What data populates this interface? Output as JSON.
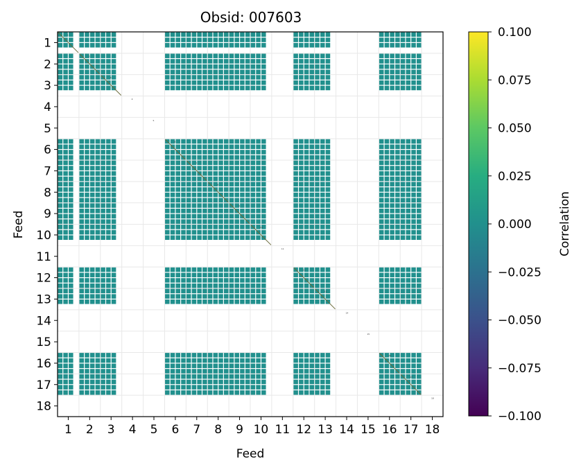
{
  "chart_data": {
    "type": "heatmap",
    "title": "Obsid: 007603",
    "xlabel": "Feed",
    "ylabel": "Feed",
    "feeds": [
      1,
      2,
      3,
      4,
      5,
      6,
      7,
      8,
      9,
      10,
      11,
      12,
      13,
      14,
      15,
      16,
      17,
      18
    ],
    "active_feeds": [
      1,
      2,
      3,
      6,
      7,
      8,
      9,
      10,
      12,
      13,
      16,
      17
    ],
    "inactive_feeds": [
      4,
      5,
      11,
      14,
      15,
      18
    ],
    "subsets_per_feed": 4,
    "active_subsets": {
      "1": [
        0,
        1,
        2
      ],
      "2": [
        0,
        1,
        2,
        3
      ],
      "3": [
        0,
        1,
        2
      ],
      "6": [
        0,
        1,
        2,
        3
      ],
      "7": [
        0,
        1,
        2,
        3
      ],
      "8": [
        0,
        1,
        2,
        3
      ],
      "9": [
        0,
        1,
        2,
        3
      ],
      "10": [
        0,
        1,
        2
      ],
      "12": [
        0,
        1,
        2,
        3
      ],
      "13": [
        0,
        1,
        2
      ],
      "16": [
        0,
        1,
        2,
        3
      ],
      "17": [
        0,
        1,
        2,
        3
      ]
    },
    "cell_value": 0.0,
    "colorbar": {
      "label": "Correlation",
      "vmin": -0.1,
      "vmax": 0.1,
      "ticks": [
        "0.100",
        "0.075",
        "0.050",
        "0.025",
        "0.000",
        "−0.025",
        "−0.050",
        "−0.075",
        "−0.100"
      ],
      "colormap": "viridis"
    },
    "grid": true
  },
  "colors": {
    "cell": "#21908d",
    "grid": "#e8e8e8",
    "background": "#ffffff",
    "axis": "#000000"
  }
}
